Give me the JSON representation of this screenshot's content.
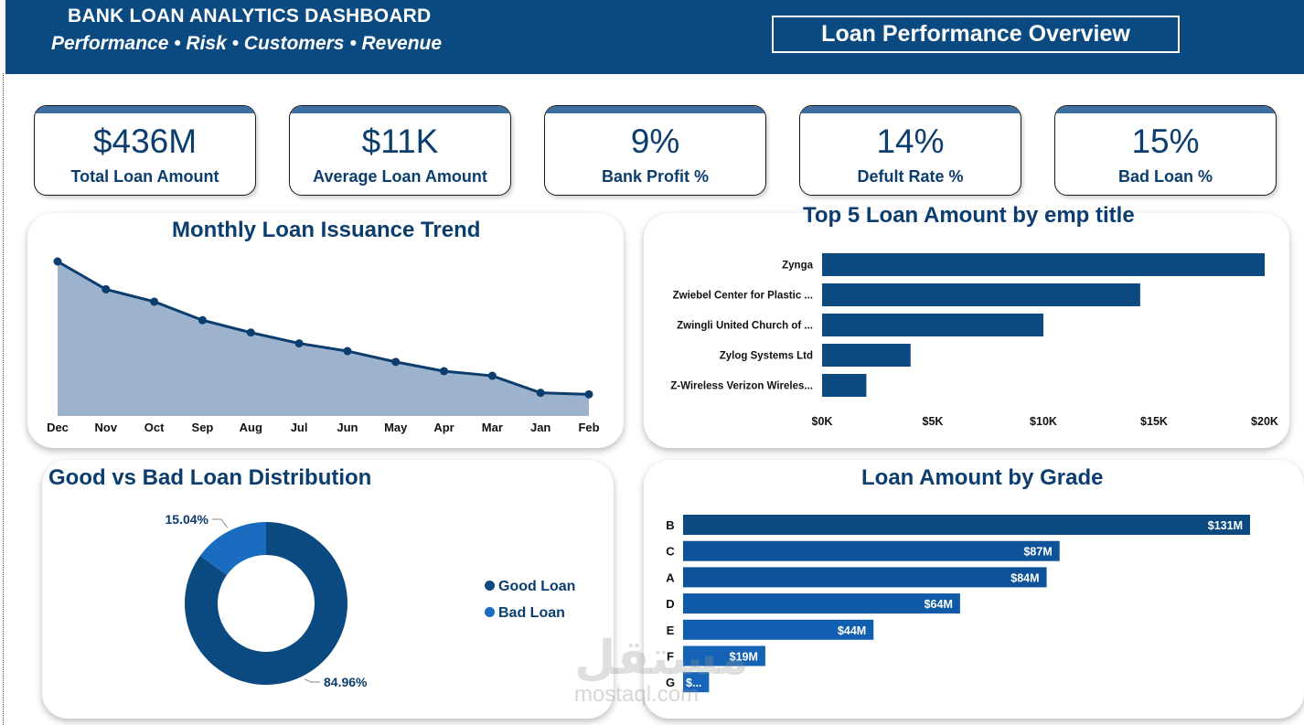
{
  "header": {
    "title": "BANK LOAN ANALYTICS DASHBOARD",
    "subtitle": "Performance • Risk • Customers • Revenue",
    "overview_label": "Loan Performance Overview"
  },
  "kpis": [
    {
      "value": "$436M",
      "label": "Total Loan Amount"
    },
    {
      "value": "$11K",
      "label": "Average Loan Amount"
    },
    {
      "value": "9%",
      "label": "Bank Profit %"
    },
    {
      "value": "14%",
      "label": "Defult Rate %"
    },
    {
      "value": "15%",
      "label": "Bad Loan %"
    }
  ],
  "monthly_trend": {
    "title": "Monthly Loan Issuance Trend",
    "chart_data": {
      "type": "area",
      "categories": [
        "Dec",
        "Nov",
        "Oct",
        "Sep",
        "Aug",
        "Jul",
        "Jun",
        "May",
        "Apr",
        "Mar",
        "Jan",
        "Feb"
      ],
      "values": [
        100,
        82,
        74,
        62,
        54,
        47,
        42,
        35,
        29,
        26,
        15,
        14
      ],
      "ylim": [
        0,
        100
      ],
      "grid": false,
      "colors": {
        "fill": "#9db3cd",
        "line": "#0b3d6e"
      }
    }
  },
  "top5": {
    "title": "Top 5 Loan Amount by emp title",
    "chart_data": {
      "type": "bar",
      "orientation": "horizontal",
      "categories": [
        "Zynga",
        "Zwiebel Center for Plastic ...",
        "Zwingli United Church of ...",
        "Zylog Systems Ltd",
        "Z-Wireless Verizon Wireles..."
      ],
      "values": [
        20000,
        14375,
        10000,
        4000,
        2000
      ],
      "xlim": [
        0,
        20000
      ],
      "x_ticks": [
        "$0K",
        "$5K",
        "$10K",
        "$15K",
        "$20K"
      ],
      "color": "#0b4a80"
    }
  },
  "good_bad": {
    "title": "Good vs Bad Loan Distribution",
    "chart_data": {
      "type": "pie",
      "style": "donut",
      "labels": [
        "Good Loan",
        "Bad Loan"
      ],
      "values": [
        84.96,
        15.04
      ],
      "value_labels": [
        "84.96%",
        "15.04%"
      ],
      "colors": [
        "#0b4a80",
        "#1a6cc0"
      ],
      "legend_position": "right"
    },
    "legend": [
      "Good Loan",
      "Bad Loan"
    ]
  },
  "grade": {
    "title": "Loan Amount by Grade",
    "chart_data": {
      "type": "bar",
      "orientation": "horizontal",
      "categories": [
        "B",
        "C",
        "A",
        "D",
        "E",
        "F",
        "G"
      ],
      "values": [
        131,
        87,
        84,
        64,
        44,
        19,
        6
      ],
      "data_labels": [
        "$131M",
        "$87M",
        "$84M",
        "$64M",
        "$44M",
        "$19M",
        "$..."
      ],
      "unit": "$M",
      "colors": [
        "#0b4a80",
        "#0e539a",
        "#0e539a",
        "#0f5aa7",
        "#115fb0",
        "#1463b5",
        "#1766ba"
      ]
    }
  },
  "watermark": {
    "arabic": "مستقل",
    "latin": "mostaql.com"
  }
}
